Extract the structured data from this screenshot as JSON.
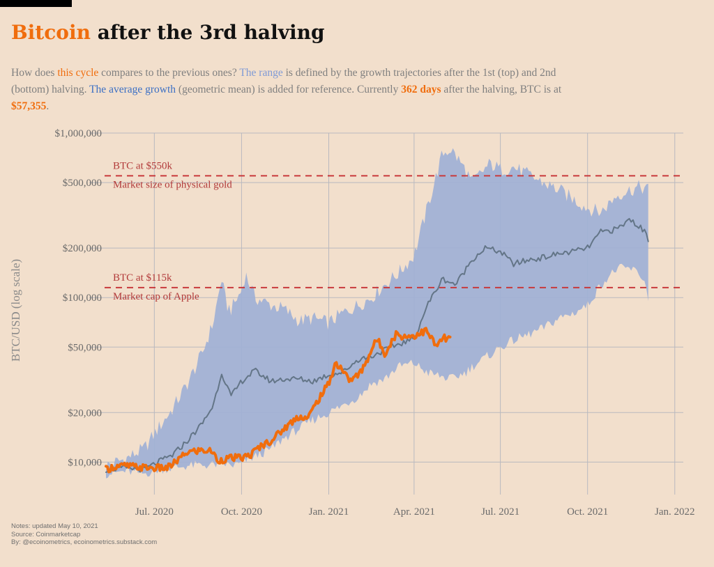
{
  "title": {
    "accent": "Bitcoin",
    "rest": " after the 3rd halving"
  },
  "subtitle": {
    "s1": "How does ",
    "s2": "this cycle",
    "s3": " compares to the previous ones? ",
    "s4": "The range",
    "s5": " is defined by the growth trajectories after the 1st (top) and 2nd (bottom) halving. ",
    "s6": "The average growth",
    "s7": " (geometric mean) is added for reference. Currently ",
    "s8": "362 days",
    "s9": " after the halving, BTC is at ",
    "s10": "$57,355",
    "s11": "."
  },
  "notes": {
    "line1": "Notes: updated May 10, 2021",
    "line2": "Source: Coinmarketcap",
    "line3": "By: @ecoinometrics, ecoinometrics.substack.com"
  },
  "colors": {
    "background": "#f2dfcc",
    "range": "#9fb0d6",
    "average": "#637587",
    "current": "#f06d0d",
    "reference": "#c8393b",
    "grid": "#b9b9bf"
  },
  "chart_data": {
    "type": "line",
    "ylabel": "BTC/USD (log scale)",
    "y_scale": "log",
    "ylim": [
      7000,
      1000000
    ],
    "xlim": [
      "2020-05-11",
      "2022-01-10"
    ],
    "grid": true,
    "y_ticks": [
      {
        "value": 10000,
        "label": "$10,000"
      },
      {
        "value": 20000,
        "label": "$20,000"
      },
      {
        "value": 50000,
        "label": "$50,000"
      },
      {
        "value": 100000,
        "label": "$100,000"
      },
      {
        "value": 200000,
        "label": "$200,000"
      },
      {
        "value": 500000,
        "label": "$500,000"
      },
      {
        "value": 1000000,
        "label": "$1,000,000"
      }
    ],
    "x_ticks": [
      {
        "date": "2020-07-01",
        "label": "Jul. 2020"
      },
      {
        "date": "2020-10-01",
        "label": "Oct. 2020"
      },
      {
        "date": "2021-01-01",
        "label": "Jan. 2021"
      },
      {
        "date": "2021-04-01",
        "label": "Apr. 2021"
      },
      {
        "date": "2021-07-01",
        "label": "Jul. 2021"
      },
      {
        "date": "2021-10-01",
        "label": "Oct. 2021"
      },
      {
        "date": "2022-01-01",
        "label": "Jan. 2022"
      }
    ],
    "reference_lines": [
      {
        "value": 550000,
        "label1": "BTC at $550k",
        "label2": "Market size of physical gold"
      },
      {
        "value": 115000,
        "label1": "BTC at $115k",
        "label2": "Market cap of Apple"
      }
    ],
    "range": {
      "x": [
        "2020-05-11",
        "2020-06-01",
        "2020-06-20",
        "2020-07-05",
        "2020-07-20",
        "2020-08-05",
        "2020-08-20",
        "2020-09-01",
        "2020-09-10",
        "2020-09-15",
        "2020-09-20",
        "2020-10-01",
        "2020-10-05",
        "2020-10-15",
        "2020-11-01",
        "2020-11-15",
        "2020-12-01",
        "2020-12-15",
        "2021-01-01",
        "2021-01-15",
        "2021-02-01",
        "2021-02-15",
        "2021-03-01",
        "2021-03-15",
        "2021-04-01",
        "2021-04-15",
        "2021-05-01",
        "2021-05-10",
        "2021-05-25",
        "2021-06-01",
        "2021-06-20",
        "2021-07-01",
        "2021-07-15",
        "2021-08-01",
        "2021-08-15",
        "2021-09-01",
        "2021-09-15",
        "2021-10-01",
        "2021-10-15",
        "2021-11-01",
        "2021-11-15",
        "2021-11-25",
        "2021-12-01",
        "2021-12-05"
      ],
      "upper": [
        9500,
        10500,
        12000,
        16000,
        21000,
        30000,
        45000,
        70000,
        130000,
        90000,
        85000,
        110000,
        140000,
        100000,
        90000,
        85000,
        72000,
        75000,
        70000,
        80000,
        90000,
        100000,
        120000,
        140000,
        180000,
        350000,
        750000,
        800000,
        600000,
        500000,
        650000,
        600000,
        620000,
        550000,
        500000,
        450000,
        400000,
        350000,
        330000,
        420000,
        450000,
        470000,
        460000,
        450000
      ],
      "lower": [
        8500,
        8800,
        8500,
        9000,
        9200,
        9500,
        9600,
        9600,
        9800,
        9700,
        9500,
        9800,
        10200,
        10800,
        12000,
        14000,
        16000,
        18000,
        20000,
        22000,
        25000,
        30000,
        32000,
        38000,
        40000,
        35000,
        33000,
        32000,
        35000,
        38000,
        45000,
        50000,
        55000,
        60000,
        65000,
        75000,
        80000,
        90000,
        120000,
        150000,
        150000,
        140000,
        120000,
        95000
      ]
    },
    "series": [
      {
        "name": "The average growth",
        "x": [
          "2020-05-11",
          "2020-06-01",
          "2020-06-20",
          "2020-07-05",
          "2020-07-20",
          "2020-08-05",
          "2020-08-20",
          "2020-09-01",
          "2020-09-10",
          "2020-09-20",
          "2020-10-01",
          "2020-10-15",
          "2020-11-01",
          "2020-11-15",
          "2020-12-01",
          "2020-12-15",
          "2021-01-01",
          "2021-01-15",
          "2021-02-01",
          "2021-02-15",
          "2021-03-01",
          "2021-03-15",
          "2021-04-01",
          "2021-04-15",
          "2021-05-01",
          "2021-05-15",
          "2021-06-01",
          "2021-06-15",
          "2021-07-01",
          "2021-07-15",
          "2021-08-01",
          "2021-08-15",
          "2021-09-01",
          "2021-09-15",
          "2021-10-01",
          "2021-10-15",
          "2021-11-01",
          "2021-11-15",
          "2021-12-01",
          "2021-12-05"
        ],
        "y": [
          9000,
          9200,
          9000,
          10000,
          11000,
          13500,
          17000,
          22000,
          35000,
          25000,
          31000,
          36000,
          31000,
          32000,
          32000,
          31000,
          34000,
          35000,
          42000,
          44000,
          48000,
          52000,
          56000,
          90000,
          130000,
          120000,
          170000,
          200000,
          190000,
          160000,
          170000,
          175000,
          185000,
          190000,
          200000,
          250000,
          260000,
          300000,
          250000,
          220000
        ]
      },
      {
        "name": "this cycle",
        "x": [
          "2020-05-11",
          "2020-05-20",
          "2020-06-01",
          "2020-06-15",
          "2020-07-01",
          "2020-07-15",
          "2020-07-28",
          "2020-08-05",
          "2020-08-20",
          "2020-09-01",
          "2020-09-05",
          "2020-09-20",
          "2020-10-01",
          "2020-10-10",
          "2020-10-21",
          "2020-11-01",
          "2020-11-15",
          "2020-11-30",
          "2020-12-10",
          "2020-12-20",
          "2021-01-01",
          "2021-01-08",
          "2021-01-15",
          "2021-01-22",
          "2021-02-01",
          "2021-02-08",
          "2021-02-15",
          "2021-02-21",
          "2021-03-01",
          "2021-03-05",
          "2021-03-13",
          "2021-03-20",
          "2021-03-31",
          "2021-04-14",
          "2021-04-25",
          "2021-05-01",
          "2021-05-05",
          "2021-05-10"
        ],
        "y": [
          9000,
          9400,
          9500,
          9300,
          9200,
          9200,
          10500,
          11500,
          11800,
          11600,
          10200,
          10600,
          10600,
          11000,
          12500,
          13500,
          16000,
          19000,
          18500,
          23500,
          30000,
          40000,
          37000,
          31500,
          33500,
          39000,
          48000,
          56000,
          46000,
          50000,
          60000,
          58000,
          58500,
          63000,
          50000,
          57000,
          56000,
          57355
        ]
      }
    ]
  }
}
